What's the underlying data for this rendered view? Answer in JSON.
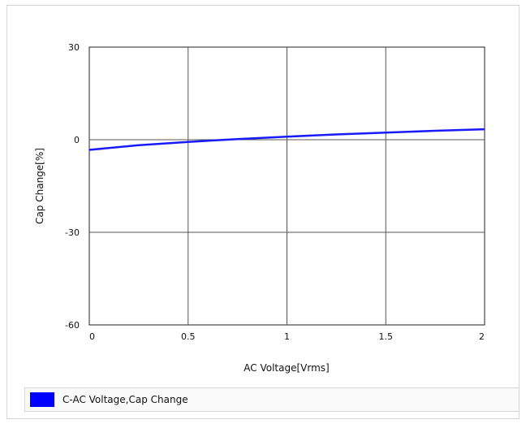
{
  "chart_data": {
    "type": "line",
    "xlabel": "AC Voltage[Vrms]",
    "ylabel": "Cap Change[%]",
    "xlim": [
      0,
      2
    ],
    "ylim": [
      -60,
      30
    ],
    "x_ticks": [
      0,
      0.5,
      1,
      1.5,
      2
    ],
    "x_tick_labels": [
      "0",
      "0.5",
      "1",
      "1.5",
      "2"
    ],
    "y_ticks": [
      -60,
      -30,
      0,
      30
    ],
    "y_tick_labels": [
      "-60",
      "-30",
      "0",
      "30"
    ],
    "grid": true,
    "legend_position": "bottom",
    "series": [
      {
        "name": "C-AC Voltage,Cap Change",
        "color": "#1a1aff",
        "x": [
          0,
          0.25,
          0.5,
          0.75,
          1.0,
          1.25,
          1.5,
          1.75,
          2.0
        ],
        "y": [
          -3.3,
          -1.8,
          -0.7,
          0.2,
          1.0,
          1.7,
          2.3,
          2.9,
          3.4
        ]
      }
    ]
  },
  "legend": {
    "label": "C-AC Voltage,Cap Change",
    "color": "#0000ff"
  }
}
